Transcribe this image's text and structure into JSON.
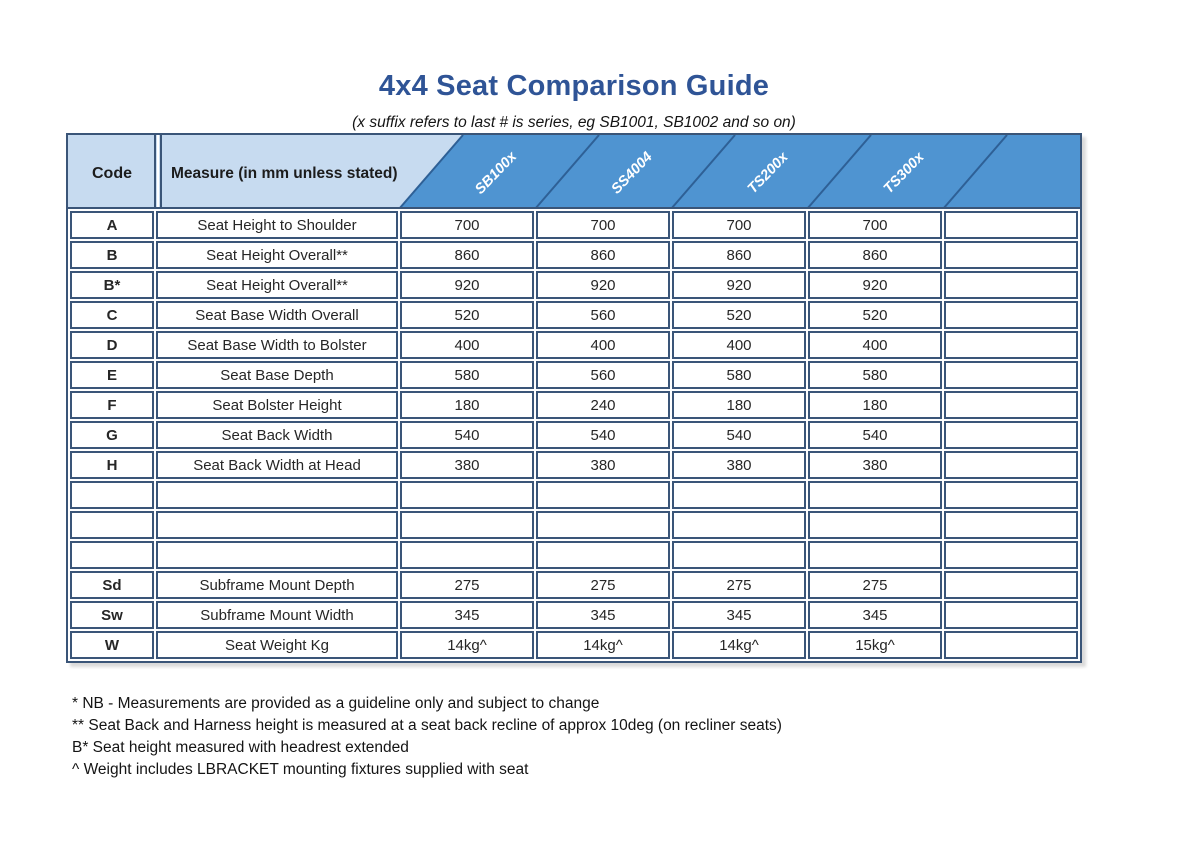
{
  "title": "4x4 Seat Comparison Guide",
  "subtitle": "(x suffix refers to last # is series, eg SB1001, SB1002 and so on)",
  "table": {
    "code_header": "Code",
    "measure_header": "Measure (in mm unless stated)",
    "product_columns": [
      "SB100x",
      "SS4004",
      "TS200x",
      "TS300x",
      ""
    ],
    "rows": [
      {
        "code": "A",
        "measure": "Seat Height to Shoulder",
        "values": [
          "700",
          "700",
          "700",
          "700",
          ""
        ]
      },
      {
        "code": "B",
        "measure": "Seat Height Overall**",
        "values": [
          "860",
          "860",
          "860",
          "860",
          ""
        ]
      },
      {
        "code": "B*",
        "measure": "Seat Height Overall**",
        "values": [
          "920",
          "920",
          "920",
          "920",
          ""
        ]
      },
      {
        "code": "C",
        "measure": "Seat Base Width Overall",
        "values": [
          "520",
          "560",
          "520",
          "520",
          ""
        ]
      },
      {
        "code": "D",
        "measure": "Seat Base Width to Bolster",
        "values": [
          "400",
          "400",
          "400",
          "400",
          ""
        ]
      },
      {
        "code": "E",
        "measure": "Seat Base Depth",
        "values": [
          "580",
          "560",
          "580",
          "580",
          ""
        ]
      },
      {
        "code": "F",
        "measure": "Seat Bolster Height",
        "values": [
          "180",
          "240",
          "180",
          "180",
          ""
        ]
      },
      {
        "code": "G",
        "measure": "Seat Back Width",
        "values": [
          "540",
          "540",
          "540",
          "540",
          ""
        ]
      },
      {
        "code": "H",
        "measure": "Seat Back Width at Head",
        "values": [
          "380",
          "380",
          "380",
          "380",
          ""
        ]
      },
      {
        "code": "",
        "measure": "",
        "values": [
          "",
          "",
          "",
          "",
          ""
        ]
      },
      {
        "code": "",
        "measure": "",
        "values": [
          "",
          "",
          "",
          "",
          ""
        ]
      },
      {
        "code": "",
        "measure": "",
        "values": [
          "",
          "",
          "",
          "",
          ""
        ]
      },
      {
        "code": "Sd",
        "measure": "Subframe Mount Depth",
        "values": [
          "275",
          "275",
          "275",
          "275",
          ""
        ]
      },
      {
        "code": "Sw",
        "measure": "Subframe Mount Width",
        "values": [
          "345",
          "345",
          "345",
          "345",
          ""
        ]
      },
      {
        "code": "W",
        "measure": "Seat Weight Kg",
        "values": [
          "14kg^",
          "14kg^",
          "14kg^",
          "15kg^",
          ""
        ]
      }
    ]
  },
  "footnotes": [
    "* NB - Measurements are provided as a guideline only and subject to change",
    "** Seat Back and Harness height is measured at a seat back recline of approx 10deg (on recliner seats)",
    "B* Seat height measured with headrest extended",
    "^ Weight includes LBRACKET mounting fixtures supplied with seat"
  ],
  "colors": {
    "title_blue": "#2f5496",
    "header_light_blue": "#c7dbf0",
    "header_dark_blue": "#4f94d1",
    "border_navy": "#3a5578",
    "diagonal_blue": "#2e6096"
  }
}
